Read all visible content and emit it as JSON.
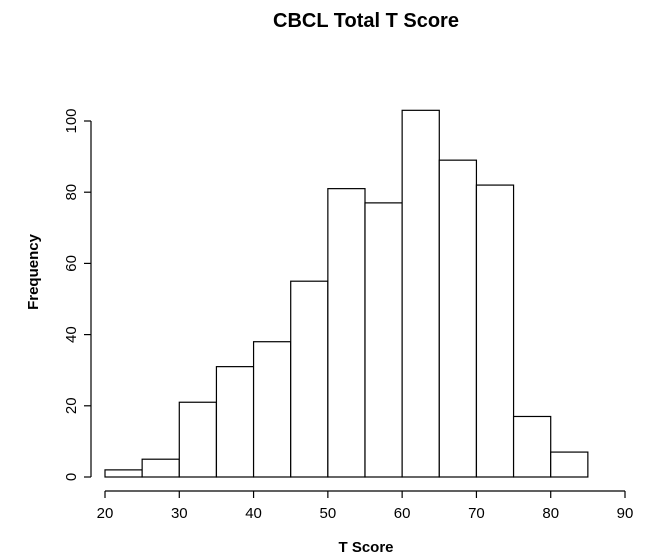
{
  "chart_data": {
    "type": "bar",
    "title": "CBCL Total T Score",
    "xlabel": "T Score",
    "ylabel": "Frequency",
    "bins": [
      [
        20,
        25
      ],
      [
        25,
        30
      ],
      [
        30,
        35
      ],
      [
        35,
        40
      ],
      [
        40,
        45
      ],
      [
        45,
        50
      ],
      [
        50,
        55
      ],
      [
        55,
        60
      ],
      [
        60,
        65
      ],
      [
        65,
        70
      ],
      [
        70,
        75
      ],
      [
        75,
        80
      ],
      [
        80,
        85
      ]
    ],
    "values": [
      2,
      5,
      21,
      31,
      38,
      55,
      81,
      77,
      103,
      89,
      82,
      17,
      7
    ],
    "xlim": [
      20,
      90
    ],
    "ylim": [
      0,
      100
    ],
    "x_ticks": [
      "20",
      "30",
      "40",
      "50",
      "60",
      "70",
      "80",
      "90"
    ],
    "y_ticks": [
      "0",
      "20",
      "40",
      "60",
      "80",
      "100"
    ],
    "grid": false,
    "bar_fill": "#ffffff",
    "bar_stroke": "#000000"
  }
}
